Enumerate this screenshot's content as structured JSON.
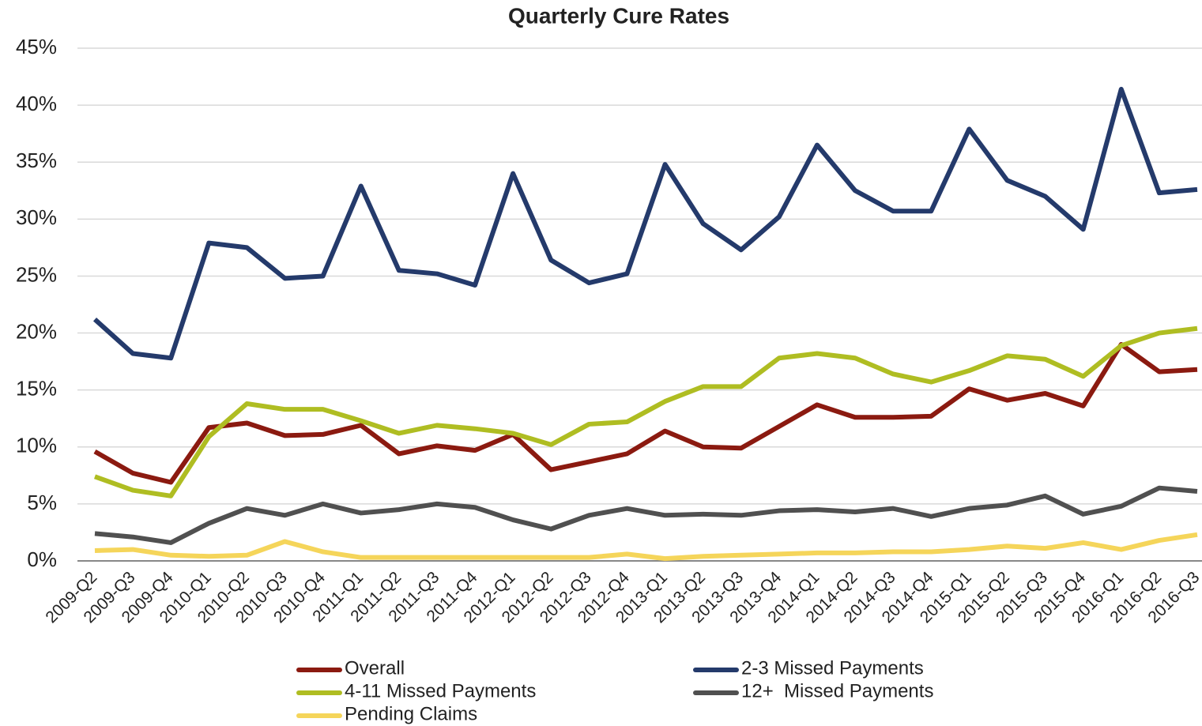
{
  "chart_data": {
    "type": "line",
    "title": "Quarterly Cure Rates",
    "categories": [
      "2009-Q2",
      "2009-Q3",
      "2009-Q4",
      "2010-Q1",
      "2010-Q2",
      "2010-Q3",
      "2010-Q4",
      "2011-Q1",
      "2011-Q2",
      "2011-Q3",
      "2011-Q4",
      "2012-Q1",
      "2012-Q2",
      "2012-Q3",
      "2012-Q4",
      "2013-Q1",
      "2013-Q2",
      "2013-Q3",
      "2013-Q4",
      "2014-Q1",
      "2014-Q2",
      "2014-Q3",
      "2014-Q4",
      "2015-Q1",
      "2015-Q2",
      "2015-Q3",
      "2015-Q4",
      "2016-Q1",
      "2016-Q2",
      "2016-Q3"
    ],
    "series": [
      {
        "name": "Overall",
        "color": "#8b1a10",
        "values": [
          9.6,
          7.7,
          6.9,
          11.7,
          12.1,
          11.0,
          11.1,
          11.9,
          9.4,
          10.1,
          9.7,
          11.1,
          8.0,
          8.7,
          9.4,
          11.4,
          10.0,
          9.9,
          11.8,
          13.7,
          12.6,
          12.6,
          12.7,
          15.1,
          14.1,
          14.7,
          13.6,
          19.0,
          16.6,
          16.8
        ]
      },
      {
        "name": "2-3 Missed Payments",
        "color": "#243a6b",
        "values": [
          21.2,
          18.2,
          17.8,
          27.9,
          27.5,
          24.8,
          25.0,
          32.9,
          25.5,
          25.2,
          24.2,
          34.0,
          26.4,
          24.4,
          25.2,
          34.8,
          29.6,
          27.3,
          30.2,
          36.5,
          32.5,
          30.7,
          30.7,
          37.9,
          33.4,
          32.0,
          29.1,
          41.4,
          32.3,
          32.6
        ]
      },
      {
        "name": "4-11 Missed Payments",
        "color": "#afbd22",
        "values": [
          7.4,
          6.2,
          5.7,
          10.9,
          13.8,
          13.3,
          13.3,
          12.3,
          11.2,
          11.9,
          11.6,
          11.2,
          10.2,
          12.0,
          12.2,
          14.0,
          15.3,
          15.3,
          17.8,
          18.2,
          17.8,
          16.4,
          15.7,
          16.7,
          18.0,
          17.7,
          16.2,
          18.9,
          20.0,
          20.4
        ]
      },
      {
        "name": "12+  Missed Payments",
        "color": "#505050",
        "values": [
          2.4,
          2.1,
          1.6,
          3.3,
          4.6,
          4.0,
          5.0,
          4.2,
          4.5,
          5.0,
          4.7,
          3.6,
          2.8,
          4.0,
          4.6,
          4.0,
          4.1,
          4.0,
          4.4,
          4.5,
          4.3,
          4.6,
          3.9,
          4.6,
          4.9,
          5.7,
          4.1,
          4.8,
          6.4,
          6.1
        ]
      },
      {
        "name": "Pending Claims",
        "color": "#f5d55a",
        "values": [
          0.9,
          1.0,
          0.5,
          0.4,
          0.5,
          1.7,
          0.8,
          0.3,
          0.3,
          0.3,
          0.3,
          0.3,
          0.3,
          0.3,
          0.6,
          0.2,
          0.4,
          0.5,
          0.6,
          0.7,
          0.7,
          0.8,
          0.8,
          1.0,
          1.3,
          1.1,
          1.6,
          1.0,
          1.8,
          2.3
        ]
      }
    ],
    "ylim": [
      0,
      45
    ],
    "yticks": [
      {
        "value": 0,
        "label": "0%"
      },
      {
        "value": 5,
        "label": "5%"
      },
      {
        "value": 10,
        "label": "10%"
      },
      {
        "value": 15,
        "label": "15%"
      },
      {
        "value": 20,
        "label": "20%"
      },
      {
        "value": 25,
        "label": "25%"
      },
      {
        "value": 30,
        "label": "30%"
      },
      {
        "value": 35,
        "label": "35%"
      },
      {
        "value": 40,
        "label": "40%"
      },
      {
        "value": 45,
        "label": "45%"
      }
    ],
    "grid": true,
    "legend": "bottom"
  }
}
